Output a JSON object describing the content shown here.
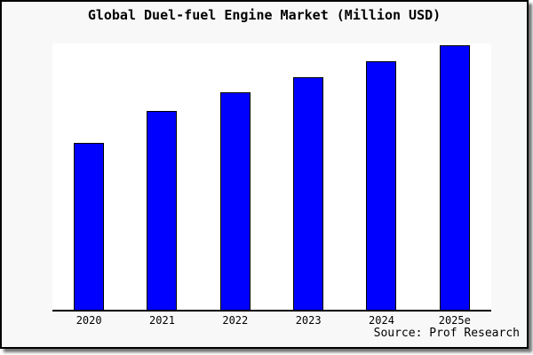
{
  "page": {
    "background_color": "#f8f8f8",
    "frame_border_color": "#000000",
    "shadow_color": "#888888"
  },
  "header": {
    "title": "Global Duel-fuel Engine Market (Million USD)"
  },
  "footer": {
    "source": "Source: Prof Research"
  },
  "chart_data": {
    "type": "bar",
    "title": "Global Duel-fuel Engine Market (Million USD)",
    "categories": [
      "2020",
      "2021",
      "2022",
      "2023",
      "2024",
      "2025e"
    ],
    "values": [
      63,
      75,
      82,
      88,
      94,
      100
    ],
    "values_note_units": "relative index, max bar = 100 (no y-axis scale shown in chart)",
    "xlabel": "",
    "ylabel": "",
    "ylim": [
      0,
      101
    ],
    "grid": false,
    "legend": false,
    "y_axis_labels_visible": false,
    "bar_color": "#0000FF",
    "bar_border_color": "#000000",
    "plot_background": "#FFFFFF",
    "axis_line_color": "#000000"
  }
}
